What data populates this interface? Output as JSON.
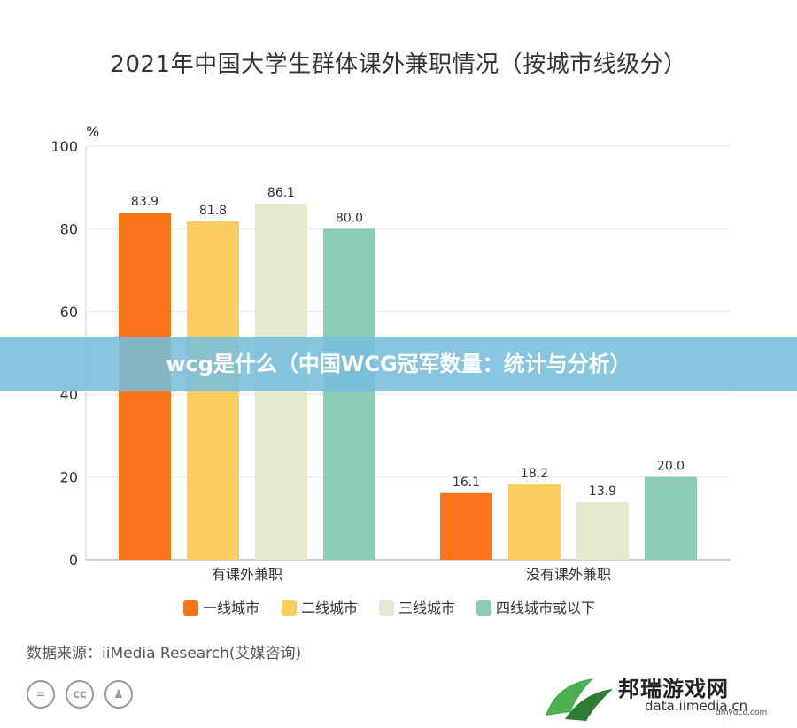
{
  "title": "2021年中国大学生群体课外兼职情况（按城市线级分）",
  "banner": "wcg是什么（中国WCG冠军数量：统计与分析）",
  "source": "数据来源：iiMedia Research(艾媒咨询)",
  "license_icons": [
    "equals-icon",
    "cc-icon",
    "person-icon"
  ],
  "watermark": {
    "text": "邦瑞游戏网",
    "url": "data.iimedia.cn",
    "small": "dmydcd.com"
  },
  "chart_data": {
    "type": "bar",
    "unit_label": "%",
    "categories": [
      "有课外兼职",
      "没有课外兼职"
    ],
    "ylim": [
      0,
      100
    ],
    "yticks": [
      0,
      20,
      40,
      60,
      80,
      100
    ],
    "grid": true,
    "legend_position": "bottom",
    "series": [
      {
        "name": "一线城市",
        "values": [
          83.9,
          16.1
        ],
        "color": "#F97319"
      },
      {
        "name": "二线城市",
        "values": [
          81.8,
          18.2
        ],
        "color": "#FBCD61"
      },
      {
        "name": "三线城市",
        "values": [
          86.1,
          13.9
        ],
        "color": "#E2E9CF"
      },
      {
        "name": "四线城市或以下",
        "values": [
          80.0,
          20.0
        ],
        "color": "#8BCCB9"
      }
    ]
  }
}
